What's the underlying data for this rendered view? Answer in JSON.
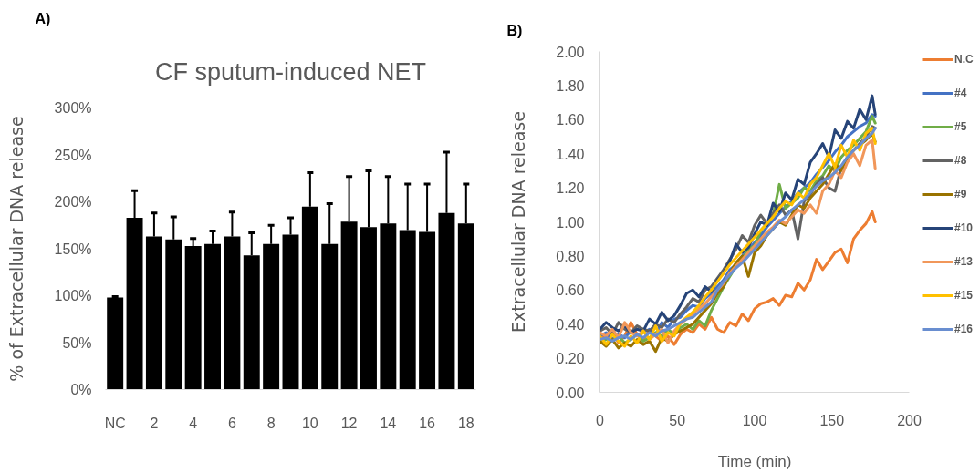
{
  "chart_data": [
    {
      "type": "bar",
      "title": "CF sputum-induced NET",
      "ylabel": "% of Extracellular DNA release",
      "annotations": [
        "A)"
      ],
      "categories": [
        "NC",
        null,
        "2",
        null,
        "4",
        null,
        "6",
        null,
        "8",
        null,
        "10",
        null,
        "12",
        null,
        "14",
        null,
        "16",
        null,
        "18"
      ],
      "values": [
        98,
        183,
        163,
        160,
        153,
        155,
        163,
        143,
        155,
        165,
        195,
        155,
        179,
        173,
        177,
        170,
        168,
        188,
        177
      ],
      "errors": [
        [
          98,
          99
        ],
        [
          183,
          212
        ],
        [
          163,
          188
        ],
        [
          160,
          184
        ],
        [
          153,
          161
        ],
        [
          155,
          169
        ],
        [
          163,
          189
        ],
        [
          143,
          167
        ],
        [
          155,
          175
        ],
        [
          165,
          183
        ],
        [
          195,
          231
        ],
        [
          155,
          198
        ],
        [
          179,
          227
        ],
        [
          173,
          233
        ],
        [
          177,
          227
        ],
        [
          170,
          219
        ],
        [
          168,
          219
        ],
        [
          188,
          253
        ],
        [
          177,
          219
        ]
      ],
      "color": "#000000",
      "ylim": [
        0,
        300
      ],
      "yticks": [
        {
          "value": 0,
          "label": "0%"
        },
        {
          "value": 50,
          "label": "50%"
        },
        {
          "value": 100,
          "label": "100%"
        },
        {
          "value": 150,
          "label": "150%"
        },
        {
          "value": 200,
          "label": "200%"
        },
        {
          "value": 250,
          "label": "250%"
        },
        {
          "value": 300,
          "label": "300%"
        }
      ],
      "grid": false
    },
    {
      "type": "line",
      "xlabel": "Time (min)",
      "ylabel": "Extracellular DNA release",
      "annotations": [
        "B)"
      ],
      "x": [
        0,
        4,
        8,
        12,
        16,
        20,
        24,
        28,
        32,
        36,
        40,
        44,
        48,
        52,
        56,
        60,
        64,
        68,
        72,
        76,
        80,
        84,
        88,
        92,
        96,
        100,
        104,
        108,
        112,
        116,
        120,
        124,
        128,
        132,
        136,
        140,
        144,
        148,
        152,
        156,
        160,
        164,
        168,
        172,
        176,
        178
      ],
      "series": [
        {
          "name": "N.C",
          "color": "#ed7d31",
          "values": [
            0.34,
            0.31,
            0.35,
            0.29,
            0.33,
            0.41,
            0.34,
            0.31,
            0.36,
            0.33,
            0.3,
            0.33,
            0.28,
            0.34,
            0.37,
            0.35,
            0.4,
            0.37,
            0.44,
            0.37,
            0.35,
            0.41,
            0.39,
            0.46,
            0.42,
            0.49,
            0.52,
            0.53,
            0.55,
            0.51,
            0.57,
            0.56,
            0.64,
            0.6,
            0.66,
            0.78,
            0.72,
            0.77,
            0.82,
            0.84,
            0.76,
            0.9,
            0.95,
            0.99,
            1.06,
            1.0
          ]
        },
        {
          "name": "#4",
          "color": "#4472c4",
          "values": [
            0.33,
            0.35,
            0.31,
            0.34,
            0.32,
            0.36,
            0.33,
            0.35,
            0.37,
            0.34,
            0.41,
            0.38,
            0.43,
            0.44,
            0.48,
            0.51,
            0.5,
            0.55,
            0.58,
            0.62,
            0.66,
            0.72,
            0.75,
            0.8,
            0.83,
            0.88,
            0.92,
            0.97,
            1.01,
            1.05,
            1.09,
            1.12,
            1.17,
            1.2,
            1.23,
            1.28,
            1.32,
            1.36,
            1.41,
            1.45,
            1.5,
            1.53,
            1.56,
            1.58,
            1.63,
            1.62
          ]
        },
        {
          "name": "#5",
          "color": "#70ad47",
          "values": [
            0.29,
            0.31,
            0.3,
            0.33,
            0.29,
            0.31,
            0.34,
            0.3,
            0.32,
            0.35,
            0.33,
            0.37,
            0.34,
            0.38,
            0.4,
            0.37,
            0.42,
            0.39,
            0.48,
            0.55,
            0.62,
            0.68,
            0.74,
            0.78,
            0.84,
            0.86,
            0.95,
            0.99,
            1.04,
            1.22,
            1.08,
            1.11,
            1.14,
            1.2,
            1.18,
            1.24,
            1.27,
            1.33,
            1.3,
            1.38,
            1.42,
            1.45,
            1.49,
            1.53,
            1.62,
            1.58
          ]
        },
        {
          "name": "#8",
          "color": "#636363",
          "values": [
            0.36,
            0.38,
            0.34,
            0.41,
            0.37,
            0.35,
            0.39,
            0.37,
            0.36,
            0.4,
            0.38,
            0.43,
            0.41,
            0.46,
            0.5,
            0.55,
            0.53,
            0.6,
            0.62,
            0.67,
            0.72,
            0.78,
            0.84,
            0.92,
            0.88,
            0.98,
            1.04,
            0.99,
            1.05,
            1.1,
            1.04,
            1.07,
            0.9,
            1.12,
            1.16,
            1.22,
            1.26,
            1.2,
            1.18,
            1.32,
            1.38,
            1.42,
            1.46,
            1.5,
            1.56,
            1.55
          ]
        },
        {
          "name": "#9",
          "color": "#997300",
          "values": [
            0.3,
            0.27,
            0.31,
            0.26,
            0.29,
            0.27,
            0.31,
            0.28,
            0.3,
            0.24,
            0.32,
            0.3,
            0.34,
            0.36,
            0.38,
            0.4,
            0.44,
            0.48,
            0.52,
            0.58,
            0.62,
            0.7,
            0.76,
            0.8,
            0.68,
            0.82,
            0.86,
            0.92,
            0.96,
            1.0,
            0.98,
            1.04,
            1.1,
            1.08,
            1.14,
            1.18,
            1.22,
            1.28,
            1.34,
            1.3,
            1.38,
            1.42,
            1.45,
            1.48,
            1.52,
            1.47
          ]
        },
        {
          "name": "#10",
          "color": "#264478",
          "values": [
            0.37,
            0.41,
            0.38,
            0.36,
            0.39,
            0.35,
            0.37,
            0.36,
            0.43,
            0.4,
            0.47,
            0.42,
            0.45,
            0.51,
            0.58,
            0.6,
            0.56,
            0.62,
            0.59,
            0.66,
            0.7,
            0.77,
            0.87,
            0.82,
            0.85,
            0.93,
            1.0,
            0.98,
            1.11,
            1.06,
            1.17,
            1.13,
            1.25,
            1.22,
            1.35,
            1.4,
            1.46,
            1.38,
            1.54,
            1.49,
            1.59,
            1.55,
            1.66,
            1.6,
            1.74,
            1.63
          ]
        },
        {
          "name": "#13",
          "color": "#f1975a",
          "values": [
            0.35,
            0.33,
            0.37,
            0.32,
            0.41,
            0.35,
            0.33,
            0.36,
            0.31,
            0.34,
            0.37,
            0.29,
            0.36,
            0.4,
            0.43,
            0.46,
            0.49,
            0.52,
            0.56,
            0.6,
            0.64,
            0.7,
            0.74,
            0.78,
            0.82,
            0.86,
            0.9,
            0.94,
            0.97,
            1.01,
            0.99,
            1.03,
            1.07,
            1.05,
            1.1,
            1.05,
            1.18,
            1.22,
            1.3,
            1.26,
            1.35,
            1.4,
            1.33,
            1.45,
            1.48,
            1.31
          ]
        },
        {
          "name": "#15",
          "color": "#ffc000",
          "values": [
            0.33,
            0.28,
            0.34,
            0.3,
            0.27,
            0.33,
            0.29,
            0.36,
            0.31,
            0.39,
            0.3,
            0.35,
            0.33,
            0.41,
            0.44,
            0.47,
            0.51,
            0.56,
            0.6,
            0.65,
            0.7,
            0.75,
            0.79,
            0.83,
            0.87,
            0.91,
            0.95,
            0.99,
            1.03,
            1.08,
            1.12,
            1.1,
            1.17,
            1.14,
            1.22,
            1.26,
            1.33,
            1.4,
            1.32,
            1.45,
            1.38,
            1.48,
            1.42,
            1.52,
            1.55,
            1.46
          ]
        },
        {
          "name": "#16",
          "color": "#698ed0",
          "values": [
            0.31,
            0.32,
            0.3,
            0.32,
            0.33,
            0.31,
            0.34,
            0.32,
            0.35,
            0.33,
            0.36,
            0.37,
            0.39,
            0.41,
            0.43,
            0.44,
            0.47,
            0.5,
            0.53,
            0.6,
            0.65,
            0.69,
            0.73,
            0.76,
            0.8,
            0.84,
            0.88,
            0.92,
            0.96,
            1.0,
            1.03,
            1.07,
            1.1,
            1.13,
            1.17,
            1.21,
            1.24,
            1.26,
            1.29,
            1.33,
            1.38,
            1.42,
            1.45,
            1.49,
            1.52,
            1.55
          ]
        }
      ],
      "xlim": [
        0,
        200
      ],
      "xticks": [
        0,
        50,
        100,
        150,
        200
      ],
      "ylim": [
        0,
        2
      ],
      "yticks": [
        {
          "value": 0,
          "label": "0.00"
        },
        {
          "value": 0.2,
          "label": "0.20"
        },
        {
          "value": 0.4,
          "label": "0.40"
        },
        {
          "value": 0.6,
          "label": "0.60"
        },
        {
          "value": 0.8,
          "label": "0.80"
        },
        {
          "value": 1,
          "label": "1.00"
        },
        {
          "value": 1.2,
          "label": "1.20"
        },
        {
          "value": 1.4,
          "label": "1.40"
        },
        {
          "value": 1.6,
          "label": "1.60"
        },
        {
          "value": 1.8,
          "label": "1.80"
        },
        {
          "value": 2,
          "label": "2.00"
        }
      ],
      "grid": false,
      "legend": "right",
      "marker": "none",
      "line_style": "solid"
    }
  ]
}
